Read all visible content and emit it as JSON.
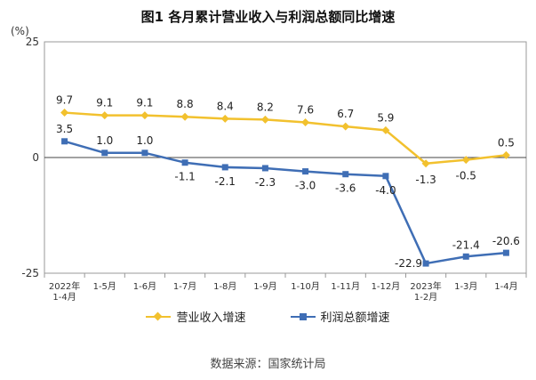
{
  "chart_data": {
    "type": "line",
    "title": "图1  各月累计营业收入与利润总额同比增速",
    "unit_label": "(%)",
    "ylim": [
      -25,
      25
    ],
    "yticks": [
      "25",
      "0",
      "-25"
    ],
    "categories": [
      [
        "2022年",
        "1-4月"
      ],
      [
        "1-5月"
      ],
      [
        "1-6月"
      ],
      [
        "1-7月"
      ],
      [
        "1-8月"
      ],
      [
        "1-9月"
      ],
      [
        "1-10月"
      ],
      [
        "1-11月"
      ],
      [
        "1-12月"
      ],
      [
        "2023年",
        "1-2月"
      ],
      [
        "1-3月"
      ],
      [
        "1-4月"
      ]
    ],
    "series": [
      {
        "name": "营业收入增速",
        "color": "#F2C12E",
        "marker": "diamond",
        "values": [
          9.7,
          9.1,
          9.1,
          8.8,
          8.4,
          8.2,
          7.6,
          6.7,
          5.9,
          -1.3,
          -0.5,
          0.5
        ],
        "labels": [
          "9.7",
          "9.1",
          "9.1",
          "8.8",
          "8.4",
          "8.2",
          "7.6",
          "6.7",
          "5.9",
          "-1.3",
          "-0.5",
          "0.5"
        ]
      },
      {
        "name": "利润总额增速",
        "color": "#3F6EB5",
        "marker": "square",
        "values": [
          3.5,
          1.0,
          1.0,
          -1.1,
          -2.1,
          -2.3,
          -3.0,
          -3.6,
          -4.0,
          -22.9,
          -21.4,
          -20.6
        ],
        "labels": [
          "3.5",
          "1.0",
          "1.0",
          "-1.1",
          "-2.1",
          "-2.3",
          "-3.0",
          "-3.6",
          "-4.0",
          "-22.9",
          "-21.4",
          "-20.6"
        ]
      }
    ],
    "source": "数据来源：国家统计局"
  }
}
